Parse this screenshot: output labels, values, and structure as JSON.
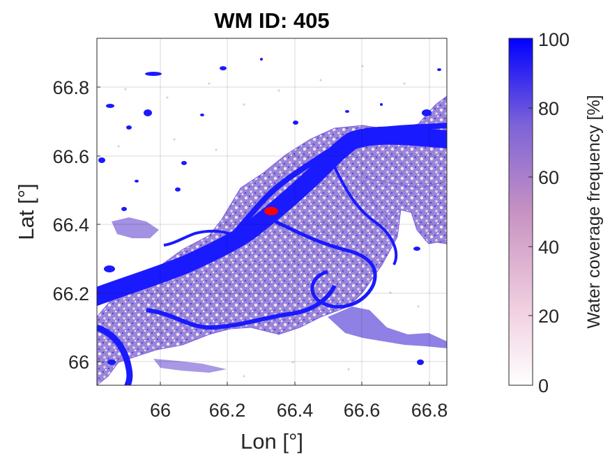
{
  "title": "WM ID: 405",
  "x_axis": {
    "label": "Lon [°]",
    "ticks": [
      "66",
      "66.2",
      "66.4",
      "66.6",
      "66.8"
    ],
    "tick_values": [
      66.0,
      66.2,
      66.4,
      66.6,
      66.8
    ],
    "range": [
      65.81,
      66.85
    ]
  },
  "y_axis": {
    "label": "Lat [°]",
    "ticks": [
      "66",
      "66.2",
      "66.4",
      "66.6",
      "66.8"
    ],
    "tick_values": [
      66.0,
      66.2,
      66.4,
      66.6,
      66.8
    ],
    "range": [
      65.93,
      66.95
    ]
  },
  "colorbar": {
    "label": "Water coverage frequency [%]",
    "ticks": [
      "0",
      "20",
      "40",
      "60",
      "80",
      "100"
    ],
    "tick_values": [
      0,
      20,
      40,
      60,
      80,
      100
    ],
    "range": [
      0,
      100
    ],
    "colors": {
      "low": "#ffffff",
      "mid": "#cc8fbf",
      "high": "#0000ff"
    }
  },
  "map": {
    "grid": true,
    "river_color": "#1a1aff",
    "floodplain_color": "#8a6fd6",
    "marker": {
      "lon": 66.33,
      "lat": 66.435,
      "color": "#ff0000"
    }
  }
}
